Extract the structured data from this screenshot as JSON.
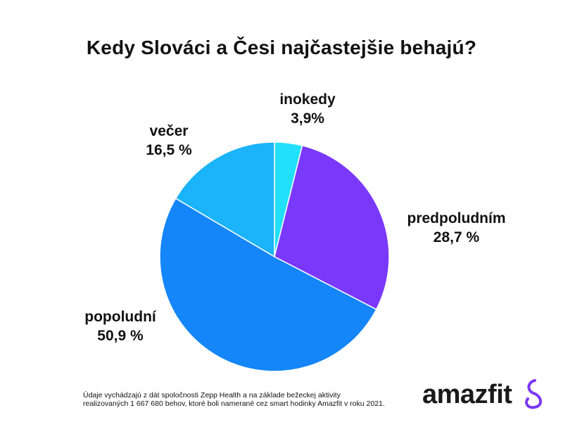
{
  "chart_data": {
    "type": "pie",
    "title": "Kedy Slováci a Česi najčastejšie behajú?",
    "slices": [
      {
        "label": "inokedy",
        "value_text": "3,9%",
        "value": 3.9,
        "color": "#22e0fb"
      },
      {
        "label": "predpoludním",
        "value_text": "28,7 %",
        "value": 28.7,
        "color": "#7a38fb"
      },
      {
        "label": "popoludní",
        "value_text": "50,9 %",
        "value": 50.9,
        "color": "#1486f9"
      },
      {
        "label": "večer",
        "value_text": "16,5 %",
        "value": 16.5,
        "color": "#1bb3f9"
      }
    ],
    "start": "12 o'clock",
    "direction": "clockwise"
  },
  "footnote": {
    "line1": "Údaje vychádzajú z dát spoločnosti Zepp Health a na základe bežeckej aktivity",
    "line2": "realizovaných 1 667 680 behov, ktoré boli namerané cez smart hodinky Amazfit v roku 2021."
  },
  "brand": {
    "name": "amazfit",
    "color": "#1a1a1a",
    "accent": "#7a38fb"
  }
}
